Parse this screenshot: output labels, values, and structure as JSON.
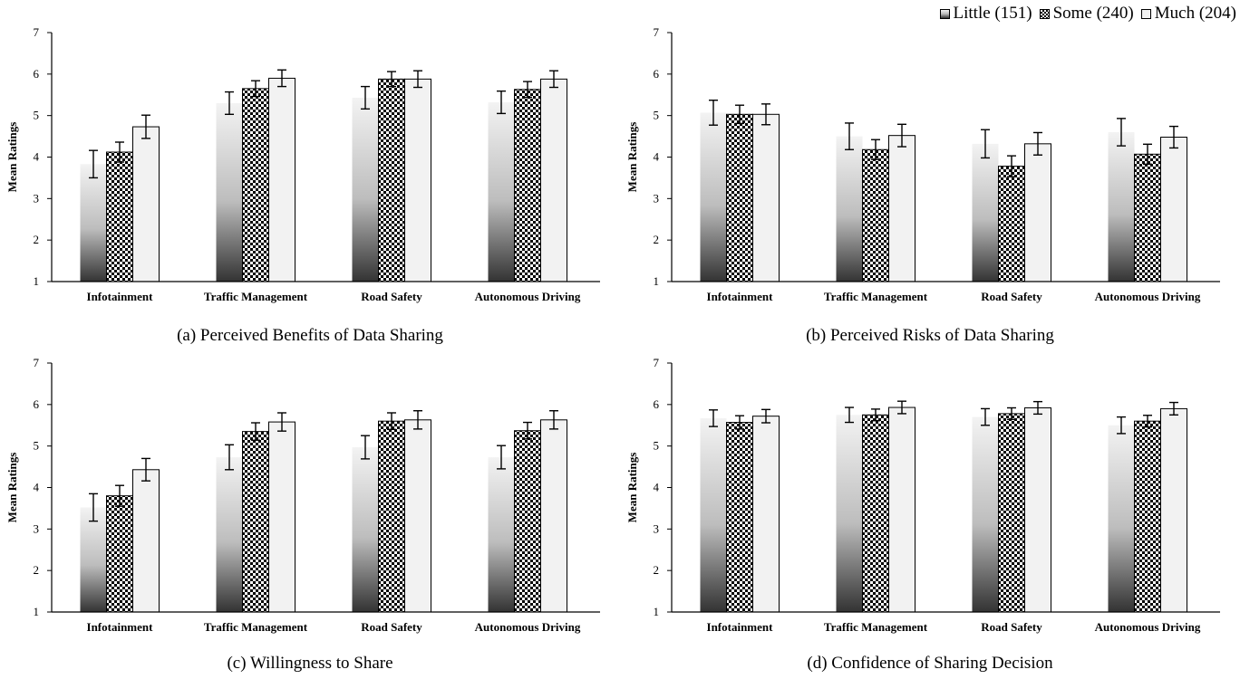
{
  "legend": {
    "items": [
      {
        "label": "Little (151)"
      },
      {
        "label": "Some (240)"
      },
      {
        "label": "Much (204)"
      }
    ]
  },
  "colors": {
    "little_top": "#f3f3f3",
    "little_bottom": "#333333",
    "some": "#000000",
    "much": "#f2f2f2",
    "axis": "#000000"
  },
  "chart_data": [
    {
      "type": "bar",
      "title": "(a) Perceived Benefits of Data Sharing",
      "ylabel": "Mean Ratings",
      "ylim": [
        1,
        7
      ],
      "yticks": [
        "1",
        "2",
        "3",
        "4",
        "5",
        "6",
        "7"
      ],
      "grid": false,
      "categories": [
        "Infotainment",
        "Traffic Management",
        "Road Safety",
        "Autonomous Driving"
      ],
      "series": [
        {
          "name": "Little (151)",
          "values": [
            3.83,
            5.3,
            5.43,
            5.32
          ],
          "errors": [
            0.33,
            0.27,
            0.27,
            0.27
          ]
        },
        {
          "name": "Some (240)",
          "values": [
            4.12,
            5.65,
            5.88,
            5.63
          ],
          "errors": [
            0.24,
            0.19,
            0.18,
            0.19
          ]
        },
        {
          "name": "Much (204)",
          "values": [
            4.73,
            5.9,
            5.88,
            5.88
          ],
          "errors": [
            0.28,
            0.2,
            0.2,
            0.2
          ]
        }
      ]
    },
    {
      "type": "bar",
      "title": "(b) Perceived Risks of Data Sharing",
      "ylabel": "Mean Ratings",
      "ylim": [
        1,
        7
      ],
      "yticks": [
        "1",
        "2",
        "3",
        "4",
        "5",
        "6",
        "7"
      ],
      "grid": false,
      "categories": [
        "Infotainment",
        "Traffic Management",
        "Road Safety",
        "Autonomous Driving"
      ],
      "series": [
        {
          "name": "Little (151)",
          "values": [
            5.07,
            4.5,
            4.32,
            4.6
          ],
          "errors": [
            0.3,
            0.32,
            0.34,
            0.33
          ]
        },
        {
          "name": "Some (240)",
          "values": [
            5.03,
            4.18,
            3.78,
            4.07
          ],
          "errors": [
            0.22,
            0.24,
            0.25,
            0.24
          ]
        },
        {
          "name": "Much (204)",
          "values": [
            5.03,
            4.52,
            4.32,
            4.48
          ],
          "errors": [
            0.25,
            0.27,
            0.27,
            0.26
          ]
        }
      ]
    },
    {
      "type": "bar",
      "title": "(c) Willingness to Share",
      "ylabel": "Mean Ratings",
      "ylim": [
        1,
        7
      ],
      "yticks": [
        "1",
        "2",
        "3",
        "4",
        "5",
        "6",
        "7"
      ],
      "grid": false,
      "categories": [
        "Infotainment",
        "Traffic Management",
        "Road Safety",
        "Autonomous Driving"
      ],
      "series": [
        {
          "name": "Little (151)",
          "values": [
            3.52,
            4.73,
            4.97,
            4.73
          ],
          "errors": [
            0.33,
            0.3,
            0.28,
            0.28
          ]
        },
        {
          "name": "Some (240)",
          "values": [
            3.8,
            5.35,
            5.6,
            5.37
          ],
          "errors": [
            0.25,
            0.21,
            0.2,
            0.2
          ]
        },
        {
          "name": "Much (204)",
          "values": [
            4.43,
            5.58,
            5.63,
            5.63
          ],
          "errors": [
            0.27,
            0.22,
            0.22,
            0.22
          ]
        }
      ]
    },
    {
      "type": "bar",
      "title": "(d) Confidence of Sharing Decision",
      "ylabel": "Mean Ratings",
      "ylim": [
        1,
        7
      ],
      "yticks": [
        "1",
        "2",
        "3",
        "4",
        "5",
        "6",
        "7"
      ],
      "grid": false,
      "categories": [
        "Infotainment",
        "Traffic Management",
        "Road Safety",
        "Autonomous Driving"
      ],
      "series": [
        {
          "name": "Little (151)",
          "values": [
            5.67,
            5.75,
            5.7,
            5.5
          ],
          "errors": [
            0.2,
            0.18,
            0.2,
            0.2
          ]
        },
        {
          "name": "Some (240)",
          "values": [
            5.57,
            5.75,
            5.78,
            5.6
          ],
          "errors": [
            0.16,
            0.14,
            0.14,
            0.14
          ]
        },
        {
          "name": "Much (204)",
          "values": [
            5.72,
            5.93,
            5.92,
            5.9
          ],
          "errors": [
            0.16,
            0.15,
            0.15,
            0.15
          ]
        }
      ]
    }
  ]
}
